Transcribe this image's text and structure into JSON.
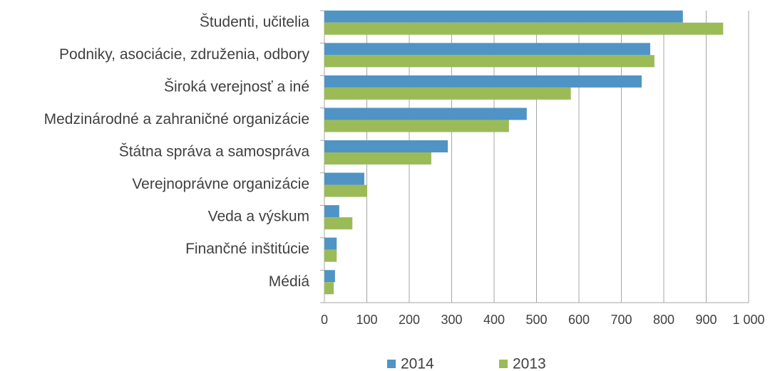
{
  "chart_data": {
    "type": "hbar",
    "categories": [
      "Študenti, učitelia",
      "Podniky, asociácie, združenia, odbory",
      "Široká verejnosť a iné",
      "Medzinárodné a zahraničné organizácie",
      "Štátna správa a samospráva",
      "Verejnoprávne organizácie",
      "Veda a výskum",
      "Finančné inštitúcie",
      "Médiá"
    ],
    "series": [
      {
        "name": "2014",
        "color": "#4f94c4",
        "values": [
          845,
          768,
          748,
          477,
          291,
          94,
          35,
          29,
          25
        ]
      },
      {
        "name": "2013",
        "color": "#9bbb59",
        "values": [
          940,
          778,
          581,
          435,
          252,
          101,
          66,
          29,
          22
        ]
      }
    ],
    "xlim": [
      0,
      1000
    ],
    "xticks": [
      0,
      100,
      200,
      300,
      400,
      500,
      600,
      700,
      800,
      900,
      {
        "value": 1000,
        "label": "1 000"
      }
    ],
    "grid": true,
    "legend": "bottom"
  }
}
